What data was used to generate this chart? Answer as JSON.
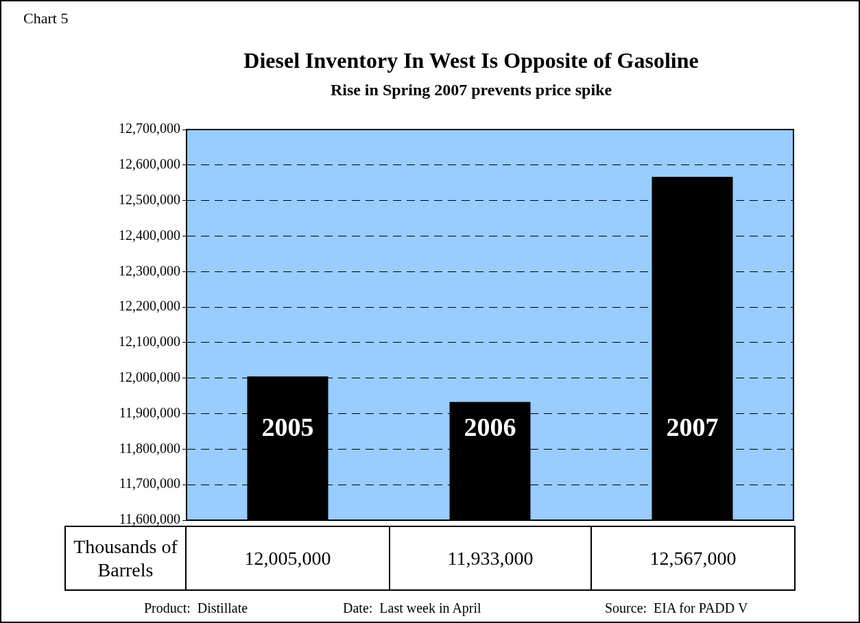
{
  "chart_data": {
    "type": "bar",
    "title": "Diesel Inventory In West Is Opposite of Gasoline",
    "subtitle": "Rise in Spring 2007 prevents price spike",
    "ylabel": "Thousands of Barrels",
    "categories": [
      "2005",
      "2006",
      "2007"
    ],
    "values": [
      12005000,
      11933000,
      12567000
    ],
    "value_labels": [
      "12,005,000",
      "11,933,000",
      "12,567,000"
    ],
    "color": "#000000",
    "ylim": [
      11600000,
      12700000
    ],
    "yticks": [
      {
        "value": 11600000,
        "label": "11,600,000"
      },
      {
        "value": 11700000,
        "label": "11,700,000"
      },
      {
        "value": 11800000,
        "label": "11,800,000"
      },
      {
        "value": 11900000,
        "label": "11,900,000"
      },
      {
        "value": 12000000,
        "label": "12,000,000"
      },
      {
        "value": 12100000,
        "label": "12,100,000"
      },
      {
        "value": 12200000,
        "label": "12,200,000"
      },
      {
        "value": 12300000,
        "label": "12,300,000"
      },
      {
        "value": 12400000,
        "label": "12,400,000"
      },
      {
        "value": 12500000,
        "label": "12,500,000"
      },
      {
        "value": 12600000,
        "label": "12,600,000"
      },
      {
        "value": 12700000,
        "label": "12,700,000"
      }
    ],
    "grid": "y",
    "annotations": [
      "Chart 5",
      "Product:  Distillate",
      "Date:  Last week in April",
      "Source:  EIA for PADD V"
    ]
  }
}
